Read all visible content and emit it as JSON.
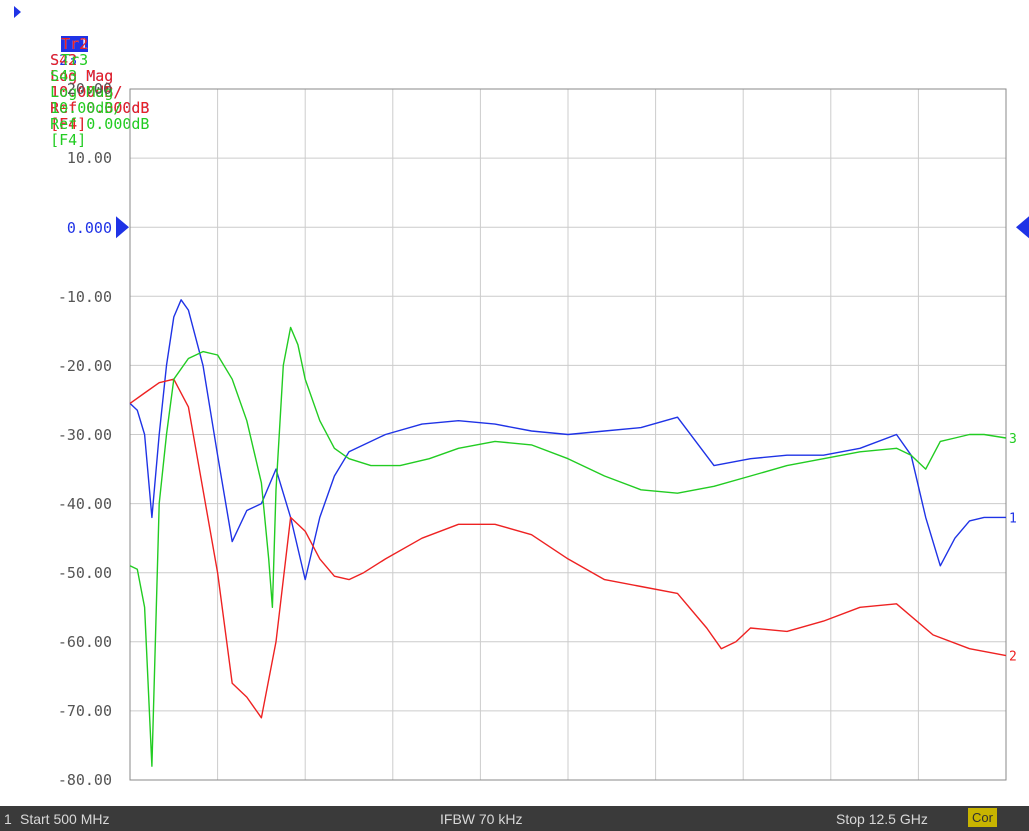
{
  "traces": [
    {
      "id": "Tr1",
      "param": "S23",
      "format": "Log Mag",
      "scale": "10.00dB/",
      "ref": "Ref 0.000dB",
      "tag": "[F4]",
      "color": "#1f33e6",
      "end_label": "1",
      "active": true
    },
    {
      "id": "Tr2",
      "param": "S42",
      "format": "Log Mag",
      "scale": "10.00dB/",
      "ref": "Ref 0.000dB",
      "tag": "[F4]",
      "color": "#ee2222",
      "end_label": "2",
      "active": false
    },
    {
      "id": "Tr3",
      "param": "S43",
      "format": "Log Mag",
      "scale": "10.00dB/",
      "ref": "Ref 0.000dB",
      "tag": "[F4]",
      "color": "#22cc22",
      "end_label": "3",
      "active": false
    }
  ],
  "y_tick_labels": [
    "20.00",
    "10.00",
    "0.000",
    "-10.00",
    "-20.00",
    "-30.00",
    "-40.00",
    "-50.00",
    "-60.00",
    "-70.00",
    "-80.00"
  ],
  "status_bar": {
    "channel": "1",
    "start": "Start 500 MHz",
    "ifbw": "IFBW 70 kHz",
    "stop": "Stop 12.5 GHz",
    "cor": "Cor"
  },
  "chart_data": {
    "type": "line",
    "xlabel": "",
    "ylabel": "",
    "x_unit": "GHz",
    "xlim": [
      0.5,
      12.5
    ],
    "ylim": [
      -80,
      20
    ],
    "grid": true,
    "reference_level_db": 0,
    "series": [
      {
        "name": "S23",
        "color": "#1f33e6",
        "x": [
          0.5,
          0.6,
          0.7,
          0.8,
          0.9,
          1.0,
          1.1,
          1.2,
          1.3,
          1.5,
          1.7,
          1.9,
          2.1,
          2.3,
          2.5,
          2.7,
          2.9,
          3.1,
          3.3,
          3.5,
          4.0,
          4.5,
          5.0,
          5.5,
          6.0,
          6.5,
          7.0,
          7.5,
          8.0,
          8.5,
          9.0,
          9.5,
          10.0,
          10.5,
          11.0,
          11.2,
          11.4,
          11.6,
          11.8,
          12.0,
          12.2,
          12.5
        ],
        "y": [
          -25.5,
          -26.5,
          -30,
          -42,
          -30,
          -20,
          -13,
          -10.5,
          -12,
          -20,
          -33,
          -45.5,
          -41,
          -40,
          -35,
          -42,
          -51,
          -42,
          -36,
          -32.5,
          -30,
          -28.5,
          -28,
          -28.5,
          -29.5,
          -30,
          -29.5,
          -29,
          -27.5,
          -34.5,
          -33.5,
          -33,
          -33,
          -32,
          -30,
          -33,
          -42,
          -49,
          -45,
          -42.5,
          -42,
          -42
        ]
      },
      {
        "name": "S42",
        "color": "#ee2222",
        "x": [
          0.5,
          0.7,
          0.9,
          1.1,
          1.3,
          1.5,
          1.7,
          1.9,
          2.1,
          2.3,
          2.5,
          2.7,
          2.9,
          3.1,
          3.3,
          3.5,
          3.7,
          4.0,
          4.5,
          5.0,
          5.5,
          6.0,
          6.5,
          7.0,
          7.5,
          8.0,
          8.4,
          8.6,
          8.8,
          9.0,
          9.5,
          10.0,
          10.5,
          11.0,
          11.5,
          12.0,
          12.5
        ],
        "y": [
          -25.5,
          -24,
          -22.5,
          -22,
          -26,
          -38,
          -50,
          -66,
          -68,
          -71,
          -60,
          -42,
          -44,
          -48,
          -50.5,
          -51,
          -50,
          -48,
          -45,
          -43,
          -43,
          -44.5,
          -48,
          -51,
          -52,
          -53,
          -58,
          -61,
          -60,
          -58,
          -58.5,
          -57,
          -55,
          -54.5,
          -59,
          -61,
          -62
        ]
      },
      {
        "name": "S43",
        "color": "#22cc22",
        "x": [
          0.5,
          0.6,
          0.7,
          0.8,
          0.9,
          1.0,
          1.1,
          1.3,
          1.5,
          1.7,
          1.9,
          2.1,
          2.3,
          2.4,
          2.45,
          2.5,
          2.6,
          2.7,
          2.8,
          2.9,
          3.1,
          3.3,
          3.5,
          3.8,
          4.2,
          4.6,
          5.0,
          5.5,
          6.0,
          6.5,
          7.0,
          7.5,
          8.0,
          8.5,
          9.0,
          9.5,
          10.0,
          10.5,
          11.0,
          11.2,
          11.4,
          11.6,
          11.8,
          12.0,
          12.2,
          12.5
        ],
        "y": [
          -49,
          -49.5,
          -55,
          -78,
          -40,
          -30,
          -22,
          -19,
          -18,
          -18.5,
          -22,
          -28,
          -37,
          -48,
          -55,
          -38,
          -20,
          -14.5,
          -17,
          -22,
          -28,
          -32,
          -33.5,
          -34.5,
          -34.5,
          -33.5,
          -32,
          -31,
          -31.5,
          -33.5,
          -36,
          -38,
          -38.5,
          -37.5,
          -36,
          -34.5,
          -33.5,
          -32.5,
          -32,
          -33,
          -35,
          -31,
          -30.5,
          -30,
          -30,
          -30.5
        ]
      }
    ]
  }
}
